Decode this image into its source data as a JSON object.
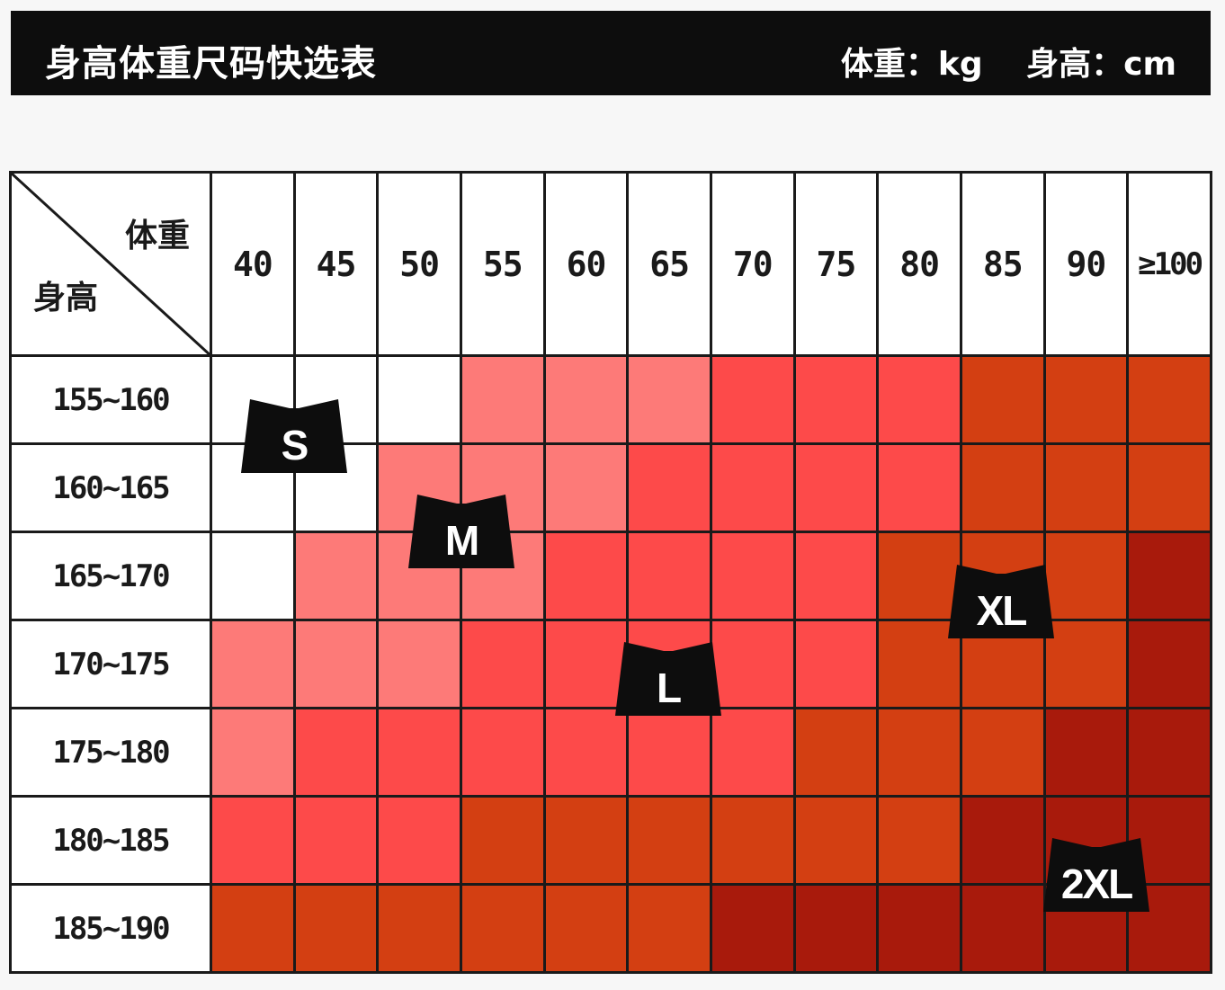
{
  "header": {
    "title": "身高体重尺码快选表",
    "weight_unit": "体重：kg",
    "height_unit": "身高：cm"
  },
  "corner": {
    "weight_label": "体重",
    "height_label": "身高"
  },
  "weights": [
    "40",
    "45",
    "50",
    "55",
    "60",
    "65",
    "70",
    "75",
    "80",
    "85",
    "90",
    "≥100"
  ],
  "heights": [
    "155~160",
    "160~165",
    "165~170",
    "170~175",
    "175~180",
    "180~185",
    "185~190"
  ],
  "size_levels": {
    "0": "S",
    "1": "M",
    "2": "L",
    "3": "XL",
    "4": "2XL"
  },
  "size_colors": {
    "S": "#ffffff",
    "M": "#fd7a78",
    "L": "#fd4a4a",
    "XL": "#d33f12",
    "2XL": "#a81a0c"
  },
  "grid": [
    [
      0,
      0,
      0,
      1,
      1,
      1,
      2,
      2,
      2,
      3,
      3,
      3
    ],
    [
      0,
      0,
      1,
      1,
      1,
      2,
      2,
      2,
      2,
      3,
      3,
      3
    ],
    [
      0,
      1,
      1,
      1,
      2,
      2,
      2,
      2,
      3,
      3,
      3,
      4
    ],
    [
      1,
      1,
      1,
      2,
      2,
      2,
      2,
      2,
      3,
      3,
      3,
      4
    ],
    [
      1,
      2,
      2,
      2,
      2,
      2,
      2,
      3,
      3,
      3,
      4,
      4
    ],
    [
      2,
      2,
      2,
      3,
      3,
      3,
      3,
      3,
      3,
      4,
      4,
      4
    ],
    [
      3,
      3,
      3,
      3,
      3,
      3,
      4,
      4,
      4,
      4,
      4,
      4
    ]
  ],
  "badges": {
    "s": "S",
    "m": "M",
    "l": "L",
    "xl": "XL",
    "xxl": "2XL"
  }
}
